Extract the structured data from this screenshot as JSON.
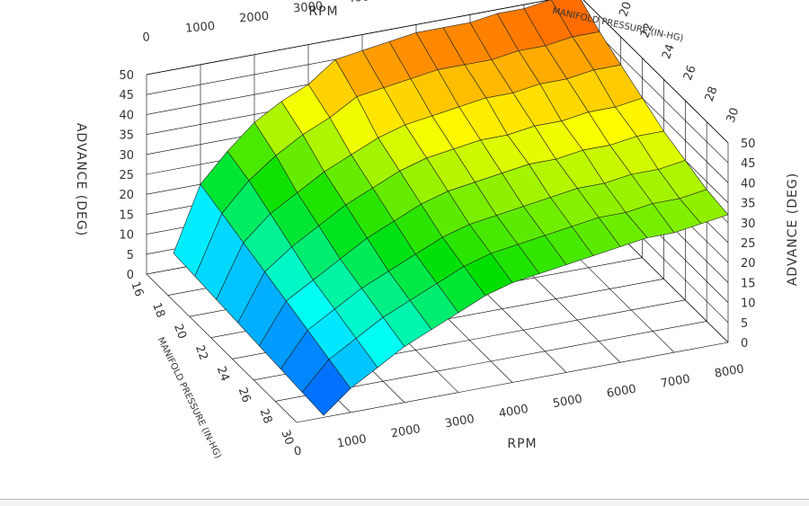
{
  "chart_data": {
    "type": "surface3d",
    "top_xlabel": "RPM",
    "top_ylabel": "MANIFOLD PRESSURE (IN-HG)",
    "left_zlabel": "ADVANCE (DEG)",
    "right_zlabel": "ADVANCE (DEG)",
    "bottom_ylabel": "MANIFOLD PRESSURE (IN-HG)",
    "bottom_xlabel": "RPM",
    "x_ticks": [
      "0",
      "1000",
      "2000",
      "3000",
      "4000",
      "5000",
      "6000",
      "7000",
      "8000"
    ],
    "y_ticks": [
      "16",
      "18",
      "20",
      "22",
      "24",
      "26",
      "28",
      "30"
    ],
    "z_ticks": [
      "0",
      "5",
      "10",
      "15",
      "20",
      "25",
      "30",
      "35",
      "40",
      "45",
      "50"
    ],
    "xlim": [
      0,
      8000
    ],
    "ylim": [
      16,
      30
    ],
    "zlim": [
      0,
      50
    ],
    "rpm": [
      500,
      1000,
      1500,
      2000,
      2500,
      3000,
      3500,
      4000,
      4500,
      5000,
      5500,
      6000,
      6500,
      7000,
      7500,
      8000
    ],
    "manifold_pressure": [
      16,
      18,
      20,
      22,
      24,
      26,
      28,
      30
    ],
    "advance": [
      [
        4,
        20,
        27,
        33,
        37,
        40,
        45,
        46,
        47,
        48,
        48,
        48,
        49,
        49,
        50,
        50
      ],
      [
        3.5,
        18,
        25,
        30,
        34,
        37,
        41,
        42,
        43,
        44,
        44,
        44,
        45,
        45,
        46,
        46
      ],
      [
        3,
        16,
        22,
        26,
        30,
        33,
        36,
        38,
        39,
        40,
        41,
        41,
        42,
        42,
        43,
        43
      ],
      [
        2.5,
        14,
        19,
        23,
        27,
        30,
        33,
        35,
        36,
        37,
        37,
        38,
        38,
        39,
        39,
        40
      ],
      [
        2,
        12,
        16,
        20,
        24,
        27,
        30,
        32,
        33,
        34,
        35,
        35,
        36,
        36,
        37,
        37
      ],
      [
        1.5,
        10,
        14,
        18,
        21,
        24,
        27,
        29,
        30,
        31,
        32,
        33,
        33,
        34,
        34,
        35
      ],
      [
        1,
        8,
        12,
        16,
        19,
        22,
        25,
        27,
        28,
        29,
        30,
        31,
        31,
        32,
        32,
        33
      ],
      [
        0.5,
        6,
        10,
        14,
        17,
        20,
        23,
        25,
        26,
        27,
        28,
        29,
        30,
        30,
        31,
        32
      ]
    ],
    "grid": true,
    "colormap": [
      "#0033ff",
      "#00ffff",
      "#00e000",
      "#ffff00",
      "#ff5000"
    ]
  }
}
